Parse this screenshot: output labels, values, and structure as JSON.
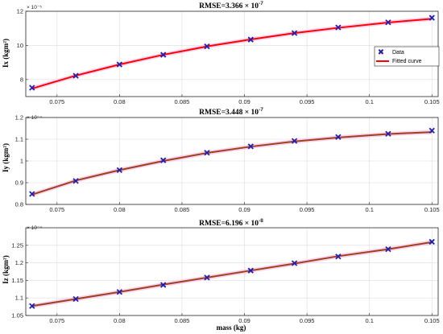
{
  "chart_data": [
    {
      "type": "line",
      "title": "RMSE=3.366 × 10",
      "title_exp": "-7",
      "ylabel": "Ix (kgm²)",
      "y_exponent": "× 10⁻⁵",
      "xlim": [
        0.0725,
        0.1055
      ],
      "ylim": [
        7,
        12
      ],
      "xticks": [
        0.075,
        0.08,
        0.085,
        0.09,
        0.095,
        0.1,
        0.105
      ],
      "xtick_labels": [
        "0.075",
        "0.08",
        "0.085",
        "0.09",
        "0.095",
        "0.1",
        "0.105"
      ],
      "yticks": [
        8,
        10,
        12
      ],
      "ytick_labels": [
        "8",
        "10",
        "12"
      ],
      "grid": true,
      "legend": {
        "placement": "right",
        "entries": [
          "Data",
          "Fitted curve"
        ]
      },
      "curve_color": "#ff0000",
      "band_color": "#f2c8ec",
      "marker_color": "#1f1fb4",
      "x": [
        0.073,
        0.0765,
        0.08,
        0.0835,
        0.087,
        0.0905,
        0.094,
        0.0975,
        0.1015,
        0.105
      ],
      "data": [
        7.52,
        8.22,
        8.88,
        9.45,
        9.94,
        10.34,
        10.72,
        11.05,
        11.35,
        11.62
      ],
      "fit": [
        7.47,
        8.23,
        8.88,
        9.45,
        9.94,
        10.35,
        10.72,
        11.03,
        11.34,
        11.56
      ]
    },
    {
      "type": "line",
      "title": "RMSE=3.448 × 10",
      "title_exp": "-7",
      "ylabel": "Iy (kgm²)",
      "y_exponent": "× 10⁻⁴",
      "xlim": [
        0.0725,
        0.1055
      ],
      "ylim": [
        0.8,
        1.2
      ],
      "xticks": [
        0.075,
        0.08,
        0.085,
        0.09,
        0.095,
        0.1,
        0.105
      ],
      "xtick_labels": [
        "0.075",
        "0.08",
        "0.085",
        "0.09",
        "0.095",
        "0.1",
        "0.105"
      ],
      "yticks": [
        0.8,
        0.9,
        1,
        1.1,
        1.2
      ],
      "ytick_labels": [
        "0.8",
        "0.9",
        "1",
        "1.1",
        "1.2"
      ],
      "grid": true,
      "curve_color": "#a0401a",
      "band_color": "#f2c8ec",
      "marker_color": "#1f1fb4",
      "x": [
        0.073,
        0.0765,
        0.08,
        0.0835,
        0.087,
        0.0905,
        0.094,
        0.0975,
        0.1015,
        0.105
      ],
      "data": [
        0.848,
        0.908,
        0.958,
        1.003,
        1.038,
        1.067,
        1.092,
        1.11,
        1.125,
        1.14
      ],
      "fit": [
        0.845,
        0.91,
        0.958,
        1.0,
        1.037,
        1.066,
        1.09,
        1.108,
        1.124,
        1.133
      ]
    },
    {
      "type": "line",
      "title": "RMSE=6.196 × 10",
      "title_exp": "-8",
      "ylabel": "Iz (kgm²)",
      "xlabel": "mass (kg)",
      "y_exponent": "× 10⁻⁴",
      "xlim": [
        0.0725,
        0.1055
      ],
      "ylim": [
        1.05,
        1.3
      ],
      "xticks": [
        0.075,
        0.08,
        0.085,
        0.09,
        0.095,
        0.1,
        0.105
      ],
      "xtick_labels": [
        "0.075",
        "0.08",
        "0.085",
        "0.09",
        "0.095",
        "0.1",
        "0.105"
      ],
      "yticks": [
        1.05,
        1.1,
        1.15,
        1.2,
        1.25
      ],
      "ytick_labels": [
        "1.05",
        "1.1",
        "1.15",
        "1.2",
        "1.25"
      ],
      "grid": true,
      "curve_color": "#a0401a",
      "band_color": "#f2c8ec",
      "marker_color": "#1f1fb4",
      "x": [
        0.073,
        0.0765,
        0.08,
        0.0835,
        0.087,
        0.0905,
        0.094,
        0.0975,
        0.1015,
        0.105
      ],
      "data": [
        1.077,
        1.097,
        1.117,
        1.137,
        1.158,
        1.178,
        1.199,
        1.218,
        1.239,
        1.26
      ],
      "fit": [
        1.077,
        1.097,
        1.117,
        1.138,
        1.158,
        1.178,
        1.198,
        1.219,
        1.239,
        1.259
      ]
    }
  ]
}
